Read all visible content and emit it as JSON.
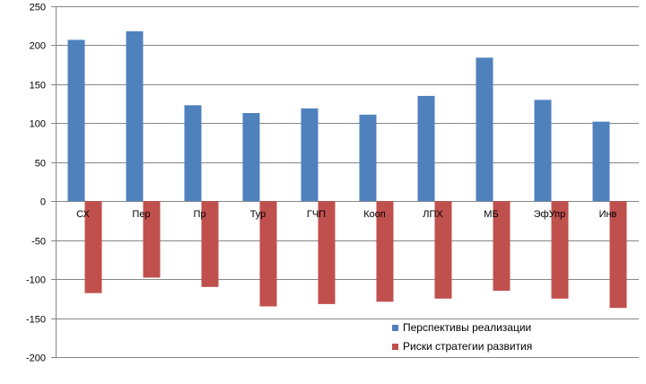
{
  "chart_data": {
    "type": "bar",
    "categories": [
      "СХ",
      "Пер",
      "Пр",
      "Тур",
      "ГЧП",
      "Кооп",
      "ЛПХ",
      "МБ",
      "ЭфУпр",
      "Инв"
    ],
    "series": [
      {
        "name": "Перспективы реализации",
        "color": "#4F81BD",
        "values": [
          207,
          218,
          123,
          113,
          119,
          111,
          135,
          184,
          130,
          102
        ]
      },
      {
        "name": "Риски стратегии развития",
        "color": "#C0504D",
        "values": [
          -118,
          -98,
          -110,
          -135,
          -132,
          -129,
          -125,
          -115,
          -125,
          -137
        ]
      }
    ],
    "ylim": [
      -200,
      250
    ],
    "yticks": [
      250,
      200,
      150,
      100,
      50,
      0,
      -50,
      -100,
      -150,
      -200
    ],
    "ytick_labels": [
      "250",
      "200",
      "150",
      "100",
      "50",
      "0",
      "-50",
      "-100",
      "-150",
      "-200"
    ],
    "grid": true,
    "legend_position": "bottom-right",
    "title": "",
    "xlabel": "",
    "ylabel": ""
  }
}
